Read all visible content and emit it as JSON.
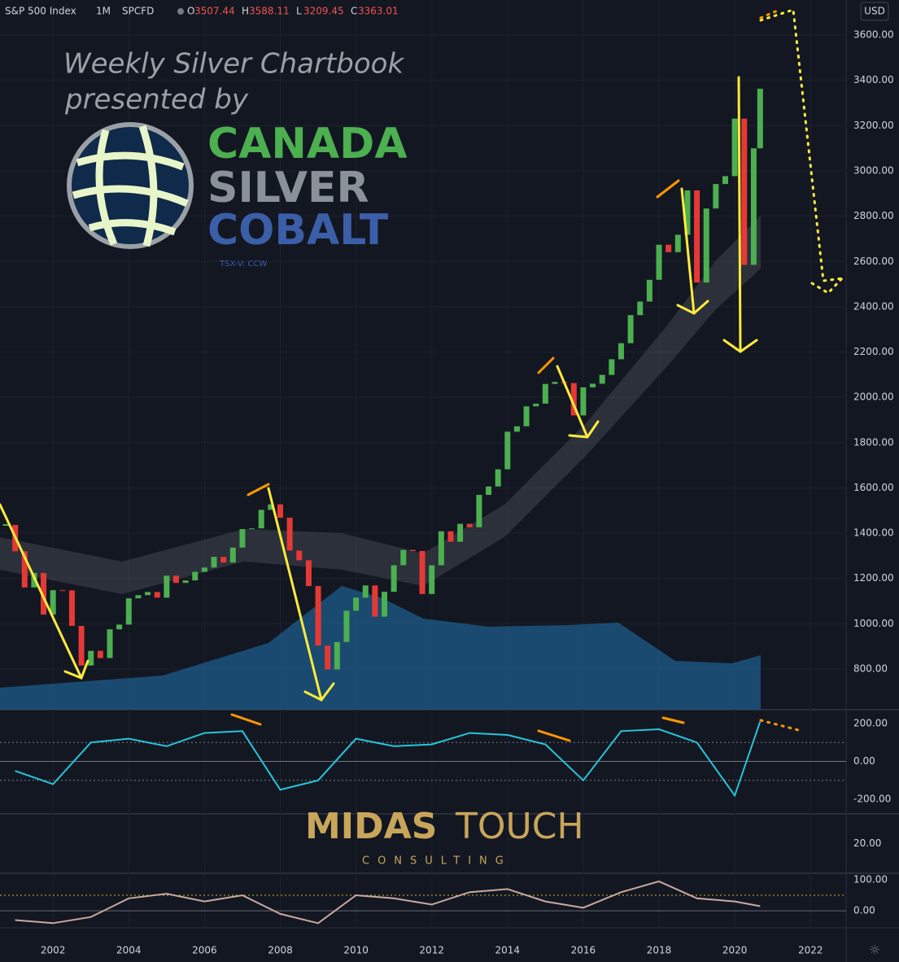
{
  "header": {
    "symbol": "S&P 500 Index",
    "interval": "1M",
    "source": "SPCFD",
    "ohlc_labels": [
      "O",
      "H",
      "L",
      "C"
    ],
    "ohlc": [
      3507.44,
      3588.11,
      3209.45,
      3363.01
    ],
    "currency": "USD"
  },
  "watermark": {
    "line1": "Weekly Silver Chartbook",
    "line2": "presented by",
    "company": [
      "CANADA",
      "SILVER",
      "COBALT"
    ],
    "ticker": "TSX-V: CCW"
  },
  "sponsor": {
    "name1": "MIDAS",
    "name2": "TOUCH",
    "tagline": "CONSULTING"
  },
  "chart_data": [
    {
      "type": "candlestick",
      "up_color": "#4caf50",
      "down_color": "#e53935",
      "grid": true,
      "xlim": [
        2000.6,
        2022.94
      ],
      "xticks": [
        2002,
        2004,
        2006,
        2008,
        2010,
        2012,
        2014,
        2016,
        2018,
        2020,
        2022
      ],
      "ylim": [
        620,
        3755
      ],
      "yticks": [
        {
          "value": 800,
          "label": "800.00"
        },
        {
          "value": 1000,
          "label": "1000.00"
        },
        {
          "value": 1200,
          "label": "1200.00"
        },
        {
          "value": 1400,
          "label": "1400.00"
        },
        {
          "value": 1600,
          "label": "1600.00"
        },
        {
          "value": 1800,
          "label": "1800.00"
        },
        {
          "value": 2000,
          "label": "2000.00"
        },
        {
          "value": 2200,
          "label": "2200.00"
        },
        {
          "value": 2400,
          "label": "2400.00"
        },
        {
          "value": 2600,
          "label": "2600.00"
        },
        {
          "value": 2800,
          "label": "2800.00"
        },
        {
          "value": 3000,
          "label": "3000.00"
        },
        {
          "value": 3200,
          "label": "3200.00"
        },
        {
          "value": 3400,
          "label": "3400.00"
        },
        {
          "value": 3600,
          "label": "3600.00"
        }
      ],
      "x": [
        2000.75,
        2001,
        2001.25,
        2001.5,
        2001.75,
        2002,
        2002.25,
        2002.5,
        2002.75,
        2003,
        2003.25,
        2003.5,
        2003.75,
        2004,
        2004.25,
        2004.5,
        2004.75,
        2005,
        2005.25,
        2005.5,
        2005.75,
        2006,
        2006.25,
        2006.5,
        2006.75,
        2007,
        2007.25,
        2007.5,
        2007.75,
        2008,
        2008.25,
        2008.5,
        2008.75,
        2009,
        2009.25,
        2009.5,
        2009.75,
        2010,
        2010.25,
        2010.5,
        2010.75,
        2011,
        2011.25,
        2011.5,
        2011.75,
        2012,
        2012.25,
        2012.5,
        2012.75,
        2013,
        2013.25,
        2013.5,
        2013.75,
        2014,
        2014.25,
        2014.5,
        2014.75,
        2015,
        2015.25,
        2015.5,
        2015.75,
        2016,
        2016.25,
        2016.5,
        2016.75,
        2017,
        2017.25,
        2017.5,
        2017.75,
        2018,
        2018.25,
        2018.5,
        2018.75,
        2019,
        2019.25,
        2019.5,
        2019.75,
        2020,
        2020.25,
        2020.5,
        2020.67
      ],
      "values": [
        1436,
        1320,
        1160,
        1224,
        1040,
        1148,
        1147,
        990,
        815,
        880,
        848,
        975,
        996,
        1112,
        1126,
        1140,
        1115,
        1212,
        1180,
        1191,
        1229,
        1248,
        1295,
        1270,
        1336,
        1418,
        1421,
        1503,
        1527,
        1468,
        1323,
        1280,
        1166,
        903,
        798,
        919,
        1057,
        1115,
        1169,
        1031,
        1141,
        1258,
        1326,
        1321,
        1131,
        1258,
        1408,
        1362,
        1441,
        1426,
        1569,
        1606,
        1682,
        1848,
        1872,
        1960,
        1972,
        2059,
        2068,
        2063,
        1920,
        2044,
        2060,
        2099,
        2168,
        2239,
        2363,
        2423,
        2519,
        2674,
        2641,
        2718,
        2914,
        2507,
        2834,
        2942,
        2977,
        3231,
        2585,
        3100,
        3363
      ]
    },
    {
      "type": "line",
      "color": "#26c6da",
      "ylim": [
        -277,
        273
      ],
      "yticks": [
        {
          "value": 200,
          "label": "200.00"
        },
        {
          "value": 0,
          "label": "0.00"
        },
        {
          "value": -200,
          "label": "-200.00"
        }
      ],
      "hlines": [
        100,
        -100
      ],
      "x": [
        2001,
        2002,
        2003,
        2004,
        2005,
        2006,
        2007,
        2008,
        2009,
        2010,
        2011,
        2012,
        2013,
        2014,
        2015,
        2016,
        2017,
        2018,
        2019,
        2020,
        2020.67
      ],
      "values": [
        -50,
        -120,
        100,
        120,
        80,
        150,
        160,
        -150,
        -100,
        120,
        80,
        90,
        150,
        140,
        90,
        -100,
        160,
        170,
        100,
        -180,
        210
      ]
    },
    {
      "type": "line",
      "color": "#26c6da",
      "ylim": [
        0,
        40
      ],
      "yticks": [
        {
          "value": 20,
          "label": "20.00"
        }
      ],
      "x": [],
      "values": []
    },
    {
      "type": "line",
      "color": "#c9a9a0",
      "ylim": [
        -55,
        121
      ],
      "yticks": [
        {
          "value": 100,
          "label": "100.00"
        },
        {
          "value": 0,
          "label": "0.00"
        }
      ],
      "hlines": [
        50
      ],
      "x": [
        2001,
        2002,
        2003,
        2004,
        2005,
        2006,
        2007,
        2008,
        2009,
        2010,
        2011,
        2012,
        2013,
        2014,
        2015,
        2016,
        2017,
        2018,
        2019,
        2020,
        2020.67
      ],
      "values": [
        -30,
        -40,
        -20,
        40,
        55,
        30,
        50,
        -10,
        -40,
        50,
        40,
        20,
        60,
        70,
        30,
        10,
        60,
        95,
        40,
        30,
        15
      ]
    }
  ]
}
